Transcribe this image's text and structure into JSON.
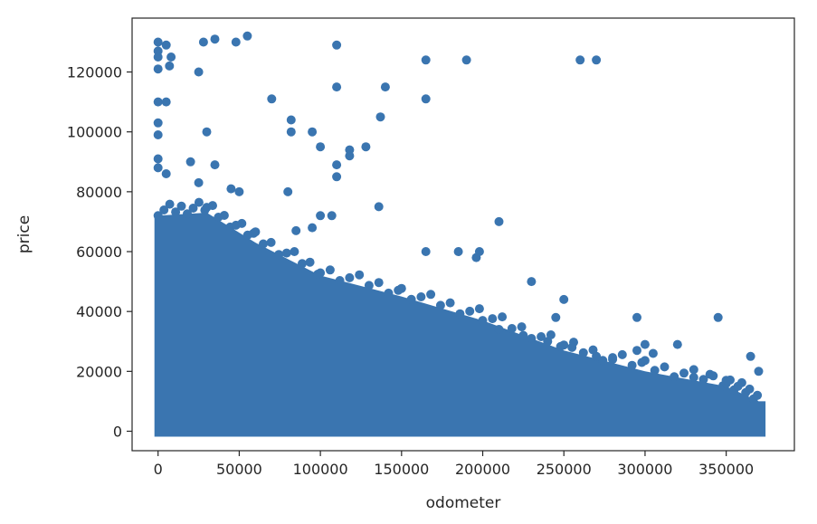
{
  "chart_data": {
    "type": "scatter",
    "xlabel": "odometer",
    "ylabel": "price",
    "xlim": [
      -16000,
      392000
    ],
    "ylim": [
      -6500,
      138000
    ],
    "xticks": [
      0,
      50000,
      100000,
      150000,
      200000,
      250000,
      300000,
      350000
    ],
    "xtick_labels": [
      "0",
      "50000",
      "100000",
      "150000",
      "200000",
      "250000",
      "300000",
      "350000"
    ],
    "yticks": [
      0,
      20000,
      40000,
      60000,
      80000,
      100000,
      120000
    ],
    "ytick_labels": [
      "0",
      "20000",
      "40000",
      "60000",
      "80000",
      "100000",
      "120000"
    ],
    "grid": false,
    "marker_color": "#3a75b0",
    "dense_region": {
      "description_points": [
        [
          0,
          72000
        ],
        [
          30000,
          73000
        ],
        [
          60000,
          63000
        ],
        [
          100000,
          52000
        ],
        [
          150000,
          45000
        ],
        [
          200000,
          37000
        ],
        [
          250000,
          27000
        ],
        [
          300000,
          20000
        ],
        [
          350000,
          15000
        ],
        [
          370000,
          10000
        ]
      ],
      "x_range": [
        0,
        372000
      ]
    },
    "outliers": [
      [
        0,
        130000
      ],
      [
        0,
        127000
      ],
      [
        0,
        125000
      ],
      [
        0,
        121000
      ],
      [
        5000,
        129000
      ],
      [
        8000,
        125000
      ],
      [
        7000,
        122000
      ],
      [
        25000,
        120000
      ],
      [
        28000,
        130000
      ],
      [
        35000,
        131000
      ],
      [
        48000,
        130000
      ],
      [
        55000,
        132000
      ],
      [
        110000,
        129000
      ],
      [
        110000,
        115000
      ],
      [
        165000,
        124000
      ],
      [
        190000,
        124000
      ],
      [
        260000,
        124000
      ],
      [
        270000,
        124000
      ],
      [
        0,
        110000
      ],
      [
        5000,
        110000
      ],
      [
        70000,
        111000
      ],
      [
        140000,
        115000
      ],
      [
        165000,
        111000
      ],
      [
        0,
        103000
      ],
      [
        0,
        99000
      ],
      [
        30000,
        100000
      ],
      [
        82000,
        104000
      ],
      [
        82000,
        100000
      ],
      [
        95000,
        100000
      ],
      [
        100000,
        95000
      ],
      [
        118000,
        94000
      ],
      [
        118000,
        92000
      ],
      [
        128000,
        95000
      ],
      [
        137000,
        105000
      ],
      [
        0,
        91000
      ],
      [
        0,
        88000
      ],
      [
        5000,
        86000
      ],
      [
        20000,
        90000
      ],
      [
        35000,
        89000
      ],
      [
        110000,
        89000
      ],
      [
        110000,
        85000
      ],
      [
        25000,
        83000
      ],
      [
        45000,
        81000
      ],
      [
        50000,
        80000
      ],
      [
        80000,
        80000
      ],
      [
        136000,
        75000
      ],
      [
        100000,
        72000
      ],
      [
        107000,
        72000
      ],
      [
        210000,
        70000
      ],
      [
        85000,
        67000
      ],
      [
        95000,
        68000
      ],
      [
        165000,
        60000
      ],
      [
        185000,
        60000
      ],
      [
        198000,
        60000
      ],
      [
        196000,
        58000
      ],
      [
        230000,
        50000
      ],
      [
        250000,
        44000
      ],
      [
        245000,
        38000
      ],
      [
        295000,
        38000
      ],
      [
        345000,
        38000
      ]
    ],
    "sparse_edge": [
      [
        210000,
        34000
      ],
      [
        225000,
        32000
      ],
      [
        240000,
        30000
      ],
      [
        255000,
        28000
      ],
      [
        270000,
        25000
      ],
      [
        280000,
        24000
      ],
      [
        295000,
        27000
      ],
      [
        300000,
        29000
      ],
      [
        305000,
        26000
      ],
      [
        320000,
        29000
      ],
      [
        330000,
        18000
      ],
      [
        340000,
        19000
      ],
      [
        350000,
        17000
      ],
      [
        365000,
        25000
      ],
      [
        370000,
        20000
      ]
    ]
  }
}
